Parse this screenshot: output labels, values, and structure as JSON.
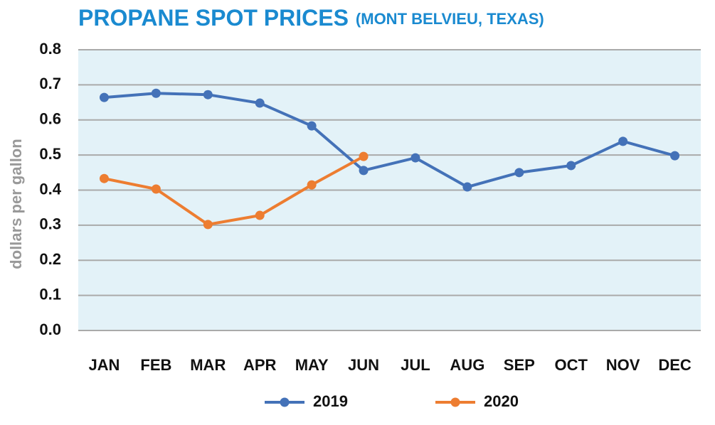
{
  "chart_data": {
    "type": "line",
    "title": "PROPANE SPOT PRICES",
    "subtitle": "(MONT BELVIEU, TEXAS)",
    "y_label": "dollars per gallon",
    "categories": [
      "JAN",
      "FEB",
      "MAR",
      "APR",
      "MAY",
      "JUN",
      "JUL",
      "AUG",
      "SEP",
      "OCT",
      "NOV",
      "DEC"
    ],
    "series": [
      {
        "name": "2019",
        "color": "#4472b8",
        "values": [
          0.664,
          0.676,
          0.672,
          0.648,
          0.583,
          0.456,
          0.492,
          0.409,
          0.45,
          0.47,
          0.539,
          0.498
        ]
      },
      {
        "name": "2020",
        "color": "#ed7d31",
        "values": [
          0.433,
          0.403,
          0.302,
          0.328,
          0.415,
          0.496,
          null,
          null,
          null,
          null,
          null,
          null
        ]
      }
    ],
    "ylim": [
      0,
      0.8
    ],
    "yticks": [
      {
        "value": 0,
        "label": "0.0"
      },
      0.1,
      0.2,
      0.3,
      0.4,
      0.5,
      0.6,
      0.7,
      0.8
    ],
    "grid": true,
    "legend": "bottom"
  }
}
